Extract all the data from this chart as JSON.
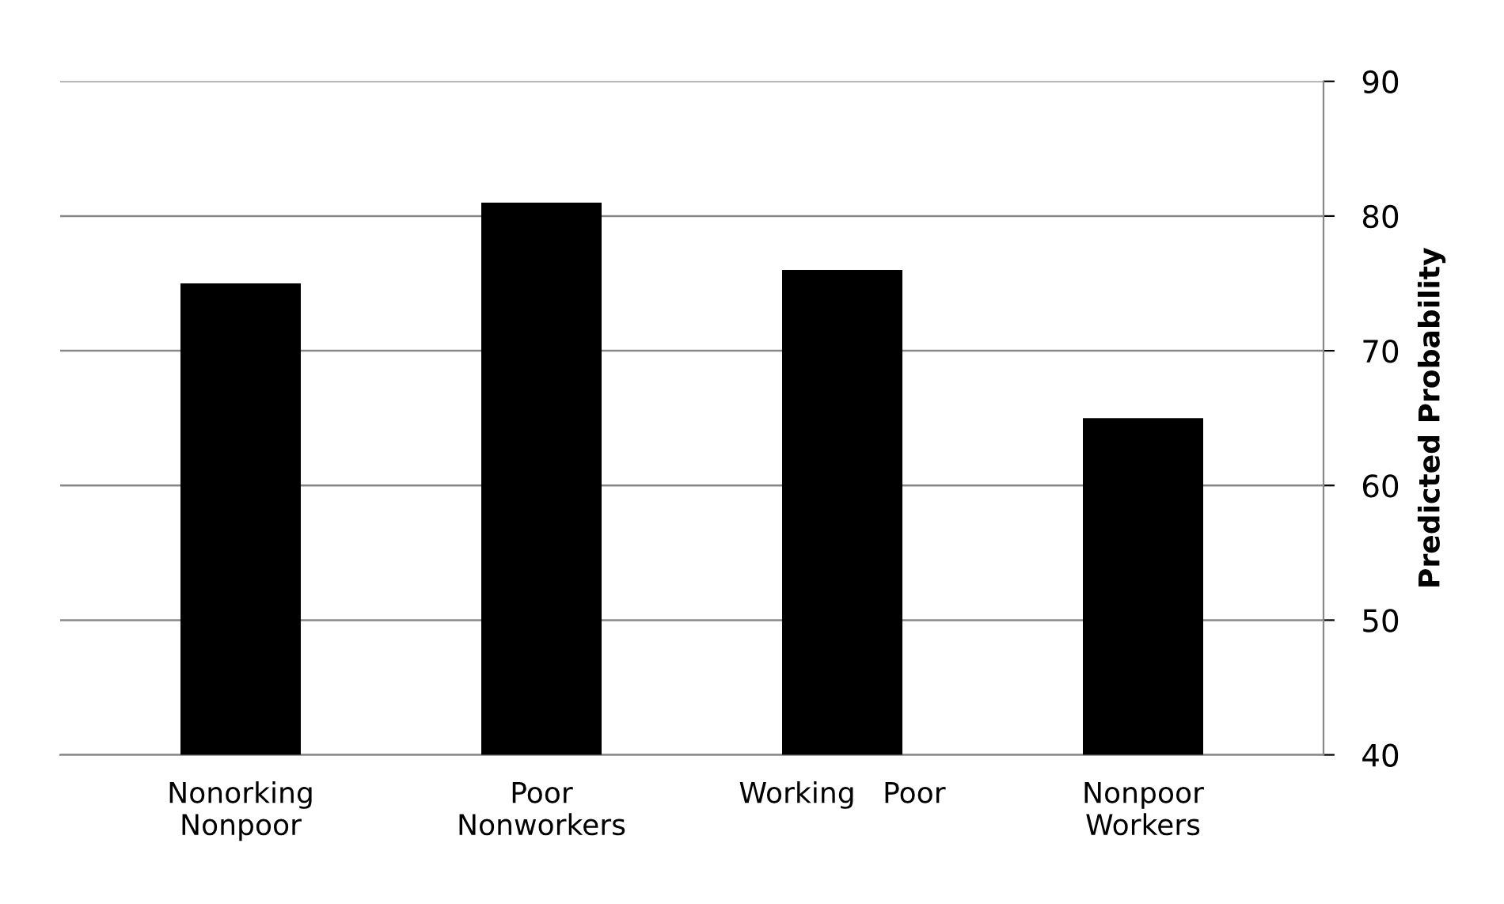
{
  "chart_data": {
    "type": "bar",
    "ylabel": "Predicted Probability",
    "categories": [
      "Nonorking\nNonpoor",
      "Poor\nNonworkers",
      "Working   Poor",
      "Nonpoor\nWorkers"
    ],
    "values": [
      75,
      81,
      76,
      65
    ],
    "color": "#000000",
    "ylim": [
      40,
      90
    ],
    "yticks": [
      40,
      50,
      60,
      70,
      80,
      90
    ],
    "grid": "y",
    "legend": false
  }
}
